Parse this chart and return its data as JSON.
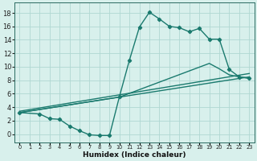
{
  "xlabel": "Humidex (Indice chaleur)",
  "background_color": "#d8f0ec",
  "grid_color": "#b0d8d2",
  "line_color": "#1a7a6e",
  "xlim": [
    -0.5,
    23.5
  ],
  "ylim": [
    -1.2,
    19.5
  ],
  "yticks": [
    0,
    2,
    4,
    6,
    8,
    10,
    12,
    14,
    16,
    18
  ],
  "xticks": [
    0,
    1,
    2,
    3,
    4,
    5,
    6,
    7,
    8,
    9,
    10,
    11,
    12,
    13,
    14,
    15,
    16,
    17,
    18,
    19,
    20,
    21,
    22,
    23
  ],
  "xtick_labels": [
    "0",
    "1",
    "2",
    "3",
    "4",
    "5",
    "6",
    "7",
    "8",
    "9",
    "10",
    "11",
    "12",
    "13",
    "14",
    "15",
    "16",
    "17",
    "18",
    "19",
    "20",
    "21",
    "22",
    "23"
  ],
  "line1_x": [
    0,
    2,
    3,
    4,
    5,
    6,
    7,
    8,
    9,
    10,
    11,
    12,
    13,
    14,
    15,
    16,
    17,
    18,
    19,
    20,
    21,
    22,
    23
  ],
  "line1_y": [
    3.2,
    3.0,
    2.3,
    2.2,
    1.2,
    0.5,
    -0.1,
    -0.2,
    -0.2,
    5.6,
    11.0,
    15.9,
    18.1,
    17.1,
    16.0,
    15.8,
    15.2,
    15.7,
    14.1,
    14.1,
    9.6,
    8.5,
    8.3
  ],
  "line2_x": [
    0,
    23
  ],
  "line2_y": [
    3.2,
    8.5
  ],
  "line3_x": [
    0,
    23
  ],
  "line3_y": [
    3.4,
    9.0
  ],
  "line4_x": [
    0,
    10,
    19,
    20,
    21,
    22,
    23
  ],
  "line4_y": [
    3.2,
    5.5,
    10.5,
    9.7,
    8.8,
    8.5,
    8.3
  ]
}
